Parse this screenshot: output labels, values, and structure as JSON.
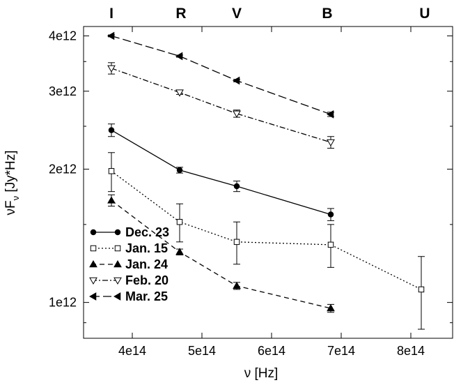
{
  "chart_data": {
    "type": "line",
    "xlabel": "ν [Hz]",
    "ylabel_main": "νF",
    "ylabel_sub": "ν",
    "ylabel_unit": " [Jy*Hz]",
    "xlim": [
      330000000000000.0,
      860000000000000.0
    ],
    "ylim": [
      830000000000.0,
      4200000000000.0
    ],
    "yscale": "log",
    "grid": false,
    "legend_position": "bottom-left",
    "x_ticks": [
      {
        "value": 400000000000000.0,
        "label": "4e14"
      },
      {
        "value": 500000000000000.0,
        "label": "5e14"
      },
      {
        "value": 600000000000000.0,
        "label": "6e14"
      },
      {
        "value": 700000000000000.0,
        "label": "7e14"
      },
      {
        "value": 800000000000000.0,
        "label": "8e14"
      }
    ],
    "y_ticks": [
      {
        "value": 1000000000000.0,
        "label": "1e12"
      },
      {
        "value": 2000000000000.0,
        "label": "2e12"
      },
      {
        "value": 3000000000000.0,
        "label": "3e12"
      },
      {
        "value": 4000000000000.0,
        "label": "4e12"
      }
    ],
    "bands": [
      {
        "label": "I",
        "x": 370000000000000.0
      },
      {
        "label": "R",
        "x": 470000000000000.0
      },
      {
        "label": "V",
        "x": 550000000000000.0
      },
      {
        "label": "B",
        "x": 680000000000000.0
      },
      {
        "label": "U",
        "x": 820000000000000.0
      }
    ],
    "series": [
      {
        "name": "Dec. 23",
        "marker": "circle",
        "dash": "solid",
        "points": [
          {
            "x": 370000000000000.0,
            "y": 2450000000000.0,
            "err": 80000000000.0
          },
          {
            "x": 468000000000000.0,
            "y": 1990000000000.0,
            "err": 30000000000.0
          },
          {
            "x": 550000000000000.0,
            "y": 1830000000000.0,
            "err": 50000000000.0
          },
          {
            "x": 685000000000000.0,
            "y": 1580000000000.0,
            "err": 50000000000.0
          }
        ]
      },
      {
        "name": "Jan. 15",
        "marker": "square-open",
        "dash": "dotted",
        "points": [
          {
            "x": 370000000000000.0,
            "y": 1980000000000.0,
            "err": 200000000000.0
          },
          {
            "x": 468000000000000.0,
            "y": 1520000000000.0,
            "err": 150000000000.0
          },
          {
            "x": 550000000000000.0,
            "y": 1370000000000.0,
            "err": 150000000000.0
          },
          {
            "x": 685000000000000.0,
            "y": 1350000000000.0,
            "err": 150000000000.0
          },
          {
            "x": 815000000000000.0,
            "y": 1070000000000.0,
            "err": 200000000000.0
          }
        ]
      },
      {
        "name": "Jan. 24",
        "marker": "triangle-up",
        "dash": "dashed",
        "points": [
          {
            "x": 370000000000000.0,
            "y": 1700000000000.0,
            "err": 50000000000.0
          },
          {
            "x": 468000000000000.0,
            "y": 1300000000000.0,
            "err": 20000000000.0
          },
          {
            "x": 550000000000000.0,
            "y": 1090000000000.0,
            "err": 20000000000.0
          },
          {
            "x": 685000000000000.0,
            "y": 970000000000.0,
            "err": 20000000000.0
          }
        ]
      },
      {
        "name": "Feb. 20",
        "marker": "triangle-down-open",
        "dash": "dashdot",
        "points": [
          {
            "x": 370000000000000.0,
            "y": 3380000000000.0,
            "err": 100000000000.0
          },
          {
            "x": 468000000000000.0,
            "y": 2980000000000.0,
            "err": 30000000000.0
          },
          {
            "x": 550000000000000.0,
            "y": 2670000000000.0,
            "err": 50000000000.0
          },
          {
            "x": 685000000000000.0,
            "y": 2300000000000.0,
            "err": 70000000000.0
          }
        ]
      },
      {
        "name": "Mar. 25",
        "marker": "triangle-left",
        "dash": "longdash",
        "points": [
          {
            "x": 370000000000000.0,
            "y": 4000000000000.0,
            "err": 20000000000.0
          },
          {
            "x": 468000000000000.0,
            "y": 3600000000000.0,
            "err": 20000000000.0
          },
          {
            "x": 550000000000000.0,
            "y": 3170000000000.0,
            "err": 20000000000.0
          },
          {
            "x": 685000000000000.0,
            "y": 2660000000000.0,
            "err": 30000000000.0
          }
        ]
      }
    ]
  }
}
